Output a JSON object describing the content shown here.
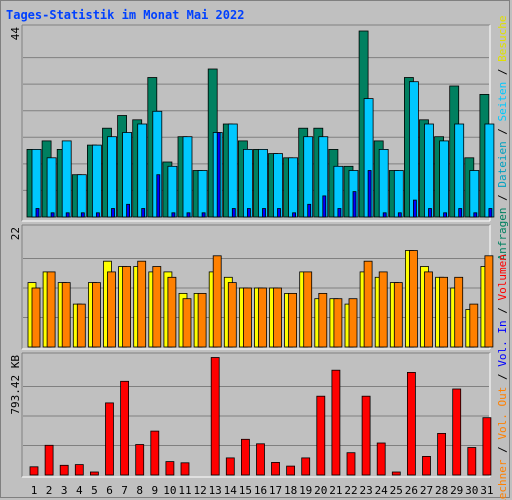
{
  "title": "Tages-Statistik im Monat Mai 2022",
  "colors": {
    "anfragen": "#008060",
    "dateien": "#00c8ff",
    "seiten": "#0000ff",
    "besuche": "#ffff00",
    "rechner": "#ff8000",
    "volumen": "#ff0000",
    "weekend_day": "#008040",
    "weekday": "#000000"
  },
  "right_labels": {
    "panel1": [
      {
        "text": "Anfragen",
        "color": "#008060"
      },
      {
        "text": " / ",
        "color": "#000000"
      },
      {
        "text": "Dateien",
        "color": "#00a0c0"
      },
      {
        "text": " / ",
        "color": "#000000"
      },
      {
        "text": "Seiten",
        "color": "#00c8ff"
      },
      {
        "text": " / ",
        "color": "#000000"
      },
      {
        "text": "Besuche",
        "color": "#e0e000"
      }
    ],
    "panel2": [
      {
        "text": "Rechner",
        "color": "#ff8000"
      },
      {
        "text": " / ",
        "color": "#000000"
      },
      {
        "text": "Vol. Out",
        "color": "#ff8000"
      },
      {
        "text": " / ",
        "color": "#000000"
      },
      {
        "text": "Vol. In",
        "color": "#0000ff"
      },
      {
        "text": " / ",
        "color": "#000000"
      },
      {
        "text": "Volumen",
        "color": "#ff0000"
      }
    ]
  },
  "chart_data": {
    "type": "bar",
    "title": "Tages-Statistik im Monat Mai 2022",
    "categories": [
      "1",
      "2",
      "3",
      "4",
      "5",
      "6",
      "7",
      "8",
      "9",
      "10",
      "11",
      "12",
      "13",
      "14",
      "15",
      "16",
      "17",
      "18",
      "19",
      "20",
      "21",
      "22",
      "23",
      "24",
      "25",
      "26",
      "27",
      "28",
      "29",
      "30",
      "31"
    ],
    "weekend_days": [
      "1",
      "7",
      "8",
      "14",
      "15",
      "21",
      "22",
      "28",
      "29"
    ],
    "panels": [
      {
        "ymax_label": "44",
        "ylim": [
          0,
          44
        ],
        "series": [
          {
            "name": "Anfragen",
            "values": [
              16,
              18,
              16,
              10,
              17,
              21,
              24,
              23,
              33,
              13,
              19,
              11,
              35,
              22,
              18,
              16,
              15,
              14,
              21,
              21,
              16,
              12,
              44,
              18,
              11,
              33,
              23,
              19,
              31,
              14,
              29
            ]
          },
          {
            "name": "Dateien",
            "values": [
              16,
              14,
              18,
              10,
              17,
              19,
              20,
              22,
              25,
              12,
              19,
              11,
              20,
              22,
              16,
              16,
              15,
              14,
              19,
              19,
              12,
              11,
              28,
              16,
              11,
              32,
              22,
              18,
              22,
              11,
              22
            ]
          },
          {
            "name": "Seiten",
            "values": [
              2,
              1,
              1,
              1,
              1,
              2,
              3,
              2,
              10,
              1,
              1,
              1,
              20,
              2,
              2,
              2,
              2,
              1,
              3,
              5,
              2,
              6,
              11,
              1,
              1,
              4,
              2,
              1,
              2,
              1,
              2
            ]
          }
        ]
      },
      {
        "ymax_label": "22",
        "ylim": [
          0,
          22
        ],
        "series": [
          {
            "name": "Besuche",
            "values": [
              12,
              14,
              12,
              8,
              12,
              16,
              15,
              15,
              14,
              14,
              10,
              10,
              14,
              13,
              11,
              11,
              11,
              10,
              14,
              9,
              9,
              8,
              14,
              13,
              12,
              18,
              15,
              13,
              11,
              7,
              15
            ]
          },
          {
            "name": "Rechner",
            "values": [
              11,
              14,
              12,
              8,
              12,
              14,
              15,
              16,
              15,
              13,
              9,
              10,
              17,
              12,
              11,
              11,
              11,
              10,
              14,
              10,
              9,
              9,
              16,
              14,
              12,
              18,
              14,
              13,
              13,
              8,
              17
            ]
          }
        ]
      },
      {
        "ymax_label": "793.42 KB",
        "ylim": [
          0,
          793.42
        ],
        "series": [
          {
            "name": "Volumen",
            "values": [
              55,
              200,
              65,
              70,
              20,
              485,
              630,
              205,
              295,
              90,
              82,
              0,
              790,
              115,
              240,
              210,
              85,
              60,
              115,
              530,
              705,
              150,
              530,
              215,
              20,
              690,
              125,
              280,
              578,
              185,
              385
            ]
          }
        ]
      }
    ]
  }
}
